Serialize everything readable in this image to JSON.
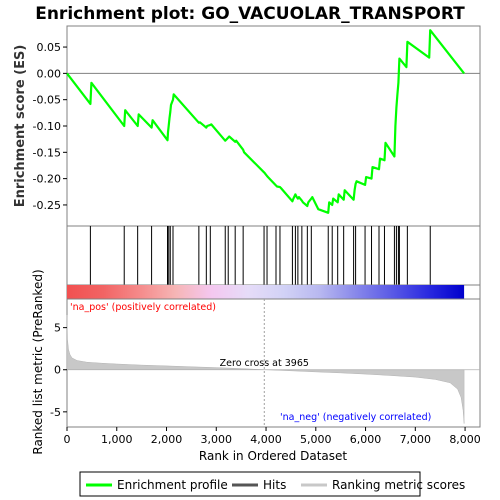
{
  "chart_data": {
    "type": "line",
    "title": "Enrichment plot: GO_VACUOLAR_TRANSPORT",
    "enrichment_panel": {
      "ylabel": "Enrichment score (ES)",
      "ylim": [
        -0.29,
        0.09
      ],
      "yticks": [
        "-0.25",
        "-0.20",
        "-0.15",
        "-0.10",
        "-0.05",
        "0.00",
        "0.05"
      ],
      "ytick_values": [
        -0.25,
        -0.2,
        -0.15,
        -0.1,
        -0.05,
        0.0,
        0.05
      ],
      "series": [
        {
          "name": "Enrichment profile",
          "color": "#00ff00",
          "x": [
            0,
            470,
            490,
            1150,
            1170,
            1420,
            1440,
            1700,
            1720,
            2020,
            2030,
            2045,
            2060,
            2075,
            2090,
            2130,
            2145,
            2650,
            2670,
            2800,
            2815,
            2880,
            2900,
            3180,
            3200,
            3240,
            3260,
            3380,
            3400,
            3540,
            3560,
            3960,
            3980,
            4020,
            4040,
            4200,
            4220,
            4280,
            4300,
            4530,
            4550,
            4590,
            4610,
            4640,
            4660,
            4720,
            4740,
            4830,
            4850,
            4910,
            4930,
            5050,
            5250,
            5270,
            5330,
            5350,
            5440,
            5460,
            5560,
            5580,
            5760,
            5780,
            5800,
            5820,
            5990,
            6010,
            6120,
            6140,
            6270,
            6290,
            6380,
            6400,
            6580,
            6590,
            6600,
            6620,
            6640,
            6660,
            6680,
            6820,
            6840,
            7280,
            7300,
            7980
          ],
          "y": [
            0.0,
            -0.058,
            -0.018,
            -0.1,
            -0.07,
            -0.1,
            -0.078,
            -0.103,
            -0.089,
            -0.127,
            -0.112,
            -0.098,
            -0.085,
            -0.073,
            -0.06,
            -0.05,
            -0.04,
            -0.094,
            -0.093,
            -0.103,
            -0.1,
            -0.098,
            -0.097,
            -0.128,
            -0.126,
            -0.122,
            -0.12,
            -0.13,
            -0.128,
            -0.145,
            -0.15,
            -0.188,
            -0.19,
            -0.195,
            -0.197,
            -0.213,
            -0.215,
            -0.216,
            -0.218,
            -0.243,
            -0.238,
            -0.23,
            -0.234,
            -0.238,
            -0.235,
            -0.242,
            -0.245,
            -0.252,
            -0.245,
            -0.238,
            -0.235,
            -0.258,
            -0.265,
            -0.245,
            -0.25,
            -0.238,
            -0.245,
            -0.23,
            -0.24,
            -0.222,
            -0.24,
            -0.222,
            -0.21,
            -0.205,
            -0.212,
            -0.197,
            -0.2,
            -0.178,
            -0.182,
            -0.162,
            -0.165,
            -0.132,
            -0.158,
            -0.13,
            -0.1,
            -0.065,
            -0.04,
            -0.018,
            0.028,
            0.012,
            0.06,
            0.03,
            0.082,
            0.0
          ]
        }
      ],
      "grid": false
    },
    "hits_panel": {
      "series_name": "Hits",
      "hit_ranks": [
        470,
        1150,
        1420,
        1700,
        2020,
        2045,
        2075,
        2130,
        2650,
        2800,
        2880,
        3180,
        3240,
        3380,
        3540,
        3960,
        4020,
        4200,
        4280,
        4530,
        4590,
        4640,
        4720,
        4830,
        4910,
        5250,
        5330,
        5440,
        5560,
        5760,
        5800,
        5990,
        6120,
        6270,
        6380,
        6580,
        6620,
        6660,
        6680,
        6840,
        7300
      ]
    },
    "color_bar": {
      "stops": [
        "#f25050",
        "#f26464",
        "#f58a8a",
        "#f6b5b5",
        "#f4c7f0",
        "#e6dcf8",
        "#d2d2f6",
        "#b8b8f0",
        "#8888ea",
        "#5a5ae6",
        "#2a2ae0",
        "#0000cc"
      ]
    },
    "ranking_panel": {
      "ylabel": "Ranked list metric (PreRanked)",
      "xlabel": "Rank in Ordered Dataset",
      "ylim": [
        -6.8,
        8.4
      ],
      "yticks": [
        "-5",
        "0",
        "5"
      ],
      "ytick_values": [
        -5,
        0,
        5
      ],
      "xlim": [
        0,
        8300
      ],
      "xticks": [
        "0",
        "1,000",
        "2,000",
        "3,000",
        "4,000",
        "5,000",
        "6,000",
        "7,000",
        "8,000"
      ],
      "xtick_values": [
        0,
        1000,
        2000,
        3000,
        4000,
        5000,
        6000,
        7000,
        8000
      ],
      "series_name": "Ranking metric scores",
      "curve_x": [
        0,
        10,
        30,
        60,
        100,
        200,
        400,
        700,
        1000,
        1500,
        2000,
        2500,
        3000,
        3500,
        3965,
        4500,
        5000,
        5500,
        6000,
        6500,
        7000,
        7400,
        7700,
        7850,
        7920,
        7960,
        7980
      ],
      "curve_y": [
        6.5,
        3.6,
        2.4,
        1.8,
        1.4,
        1.1,
        0.9,
        0.78,
        0.68,
        0.55,
        0.45,
        0.35,
        0.25,
        0.14,
        0.0,
        -0.13,
        -0.26,
        -0.38,
        -0.52,
        -0.68,
        -0.88,
        -1.15,
        -1.55,
        -2.3,
        -3.3,
        -4.8,
        -6.4
      ],
      "zero_cross_label": "Zero cross at 3965",
      "zero_cross_x": 3965,
      "pos_label": "'na_pos' (positively correlated)",
      "neg_label": "'na_neg' (negatively correlated)",
      "pos_color": "#ff0000",
      "neg_color": "#0000ff"
    },
    "legend": [
      {
        "label": "Enrichment profile",
        "color": "#00ff00"
      },
      {
        "label": "Hits",
        "color": "#555555"
      },
      {
        "label": "Ranking metric scores",
        "color": "#c8c8c8"
      }
    ]
  }
}
